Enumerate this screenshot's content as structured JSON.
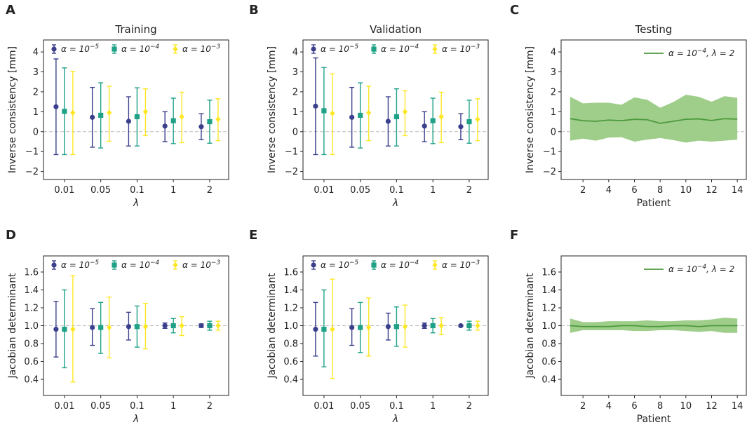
{
  "colors": {
    "alpha5": "#3b3f8c",
    "alpha4": "#1fa187",
    "alpha3": "#fde725",
    "band_line": "#4c9a3c",
    "band_fill": "#9fcd8a",
    "ref": "#bbbbbb"
  },
  "legend_errorbar": [
    {
      "pre": "α = 10",
      "sup": "−5",
      "color": "#3b3f8c",
      "marker": "circle"
    },
    {
      "pre": "α = 10",
      "sup": "−4",
      "color": "#1fa187",
      "marker": "square"
    },
    {
      "pre": "α = 10",
      "sup": "−3",
      "color": "#fde725",
      "marker": "diamond"
    }
  ],
  "legend_band": {
    "pre": "α = 10",
    "sup": "−4",
    "post": ", λ = 2"
  },
  "chart_data": [
    {
      "id": "A",
      "panel_label": "A",
      "type": "errorbar",
      "title": "Training",
      "xlabel": "λ",
      "ylabel": "Inverse consistency [mm]",
      "categories": [
        "0.01",
        "0.05",
        "0.1",
        "1",
        "2"
      ],
      "ylim": [
        -2.4,
        4.6
      ],
      "yticks": [
        -2,
        -1,
        0,
        1,
        2,
        3,
        4
      ],
      "ref": 0,
      "series": [
        {
          "name": "α = 10⁻⁵",
          "mean": [
            1.25,
            0.72,
            0.52,
            0.28,
            0.25
          ],
          "lower": [
            -1.15,
            -0.78,
            -0.72,
            -0.5,
            -0.4
          ],
          "upper": [
            3.65,
            2.22,
            1.75,
            1.0,
            0.9
          ]
        },
        {
          "name": "α = 10⁻⁴",
          "mean": [
            1.02,
            0.82,
            0.75,
            0.55,
            0.5
          ],
          "lower": [
            -1.15,
            -0.82,
            -0.72,
            -0.6,
            -0.58
          ],
          "upper": [
            3.2,
            2.45,
            2.2,
            1.68,
            1.58
          ]
        },
        {
          "name": "α = 10⁻³",
          "mean": [
            0.95,
            0.95,
            1.0,
            0.75,
            0.62
          ],
          "lower": [
            -1.15,
            -0.48,
            -0.2,
            -0.55,
            -0.45
          ],
          "upper": [
            3.02,
            2.28,
            2.15,
            1.98,
            1.65
          ]
        }
      ]
    },
    {
      "id": "B",
      "panel_label": "B",
      "type": "errorbar",
      "title": "Validation",
      "xlabel": "λ",
      "ylabel": "Inverse consistency [mm]",
      "categories": [
        "0.01",
        "0.05",
        "0.1",
        "1",
        "2"
      ],
      "ylim": [
        -2.4,
        4.6
      ],
      "yticks": [
        -2,
        -1,
        0,
        1,
        2,
        3,
        4
      ],
      "ref": 0,
      "series": [
        {
          "name": "α = 10⁻⁵",
          "mean": [
            1.28,
            0.72,
            0.52,
            0.28,
            0.25
          ],
          "lower": [
            -1.15,
            -0.78,
            -0.72,
            -0.5,
            -0.4
          ],
          "upper": [
            3.7,
            2.22,
            1.75,
            1.0,
            0.9
          ]
        },
        {
          "name": "α = 10⁻⁴",
          "mean": [
            1.05,
            0.82,
            0.75,
            0.55,
            0.5
          ],
          "lower": [
            -1.15,
            -0.82,
            -0.72,
            -0.6,
            -0.58
          ],
          "upper": [
            3.22,
            2.45,
            2.15,
            1.68,
            1.58
          ]
        },
        {
          "name": "α = 10⁻³",
          "mean": [
            0.92,
            0.95,
            1.0,
            0.75,
            0.62
          ],
          "lower": [
            -1.15,
            -0.45,
            -0.2,
            -0.55,
            -0.45
          ],
          "upper": [
            2.9,
            2.28,
            2.05,
            1.98,
            1.65
          ]
        }
      ]
    },
    {
      "id": "C",
      "panel_label": "C",
      "type": "area",
      "title": "Testing",
      "xlabel": "Patient",
      "ylabel": "Inverse consistency [mm]",
      "x": [
        1,
        2,
        3,
        4,
        5,
        6,
        7,
        8,
        9,
        10,
        11,
        12,
        13,
        14
      ],
      "xlim": [
        0.3,
        14.7
      ],
      "xticks": [
        2,
        4,
        6,
        8,
        10,
        12,
        14
      ],
      "ylim": [
        -2.4,
        4.6
      ],
      "yticks": [
        -2,
        -1,
        0,
        1,
        2,
        3,
        4
      ],
      "ref": 0,
      "mean": [
        0.65,
        0.55,
        0.52,
        0.58,
        0.55,
        0.62,
        0.6,
        0.42,
        0.52,
        0.62,
        0.64,
        0.56,
        0.65,
        0.63
      ],
      "lower": [
        -0.45,
        -0.35,
        -0.45,
        -0.3,
        -0.28,
        -0.5,
        -0.4,
        -0.32,
        -0.42,
        -0.55,
        -0.45,
        -0.5,
        -0.45,
        -0.4
      ],
      "upper": [
        1.75,
        1.42,
        1.45,
        1.45,
        1.35,
        1.72,
        1.6,
        1.2,
        1.48,
        1.85,
        1.75,
        1.5,
        1.78,
        1.7
      ]
    },
    {
      "id": "D",
      "panel_label": "D",
      "type": "errorbar",
      "title": "",
      "xlabel": "λ",
      "ylabel": "Jacobian determinant",
      "categories": [
        "0.01",
        "0.05",
        "0.1",
        "1",
        "2"
      ],
      "ylim": [
        0.22,
        1.78
      ],
      "yticks": [
        0.4,
        0.6,
        0.8,
        1.0,
        1.2,
        1.4,
        1.6
      ],
      "ref": 1.0,
      "series": [
        {
          "name": "α = 10⁻⁵",
          "mean": [
            0.96,
            0.98,
            0.99,
            1.0,
            1.0
          ],
          "lower": [
            0.65,
            0.78,
            0.84,
            0.97,
            0.98
          ],
          "upper": [
            1.27,
            1.19,
            1.15,
            1.03,
            1.02
          ]
        },
        {
          "name": "α = 10⁻⁴",
          "mean": [
            0.96,
            0.98,
            0.99,
            1.0,
            1.0
          ],
          "lower": [
            0.53,
            0.69,
            0.76,
            0.92,
            0.95
          ],
          "upper": [
            1.4,
            1.26,
            1.22,
            1.08,
            1.05
          ]
        },
        {
          "name": "α = 10⁻³",
          "mean": [
            0.96,
            0.98,
            0.99,
            1.0,
            1.0
          ],
          "lower": [
            0.37,
            0.64,
            0.74,
            0.89,
            0.95
          ],
          "upper": [
            1.56,
            1.32,
            1.25,
            1.1,
            1.05
          ]
        }
      ]
    },
    {
      "id": "E",
      "panel_label": "E",
      "type": "errorbar",
      "title": "",
      "xlabel": "λ",
      "ylabel": "Jacobian determinant",
      "categories": [
        "0.01",
        "0.05",
        "0.1",
        "1",
        "2"
      ],
      "ylim": [
        0.22,
        1.78
      ],
      "yticks": [
        0.4,
        0.6,
        0.8,
        1.0,
        1.2,
        1.4,
        1.6
      ],
      "ref": 1.0,
      "series": [
        {
          "name": "α = 10⁻⁵",
          "mean": [
            0.96,
            0.98,
            0.99,
            1.0,
            1.0
          ],
          "lower": [
            0.66,
            0.78,
            0.84,
            0.97,
            0.99
          ],
          "upper": [
            1.26,
            1.19,
            1.14,
            1.03,
            1.01
          ]
        },
        {
          "name": "α = 10⁻⁴",
          "mean": [
            0.96,
            0.98,
            0.99,
            1.0,
            1.0
          ],
          "lower": [
            0.54,
            0.7,
            0.77,
            0.92,
            0.95
          ],
          "upper": [
            1.4,
            1.26,
            1.21,
            1.08,
            1.05
          ]
        },
        {
          "name": "α = 10⁻³",
          "mean": [
            0.96,
            0.98,
            0.99,
            1.0,
            1.0
          ],
          "lower": [
            0.41,
            0.66,
            0.76,
            0.9,
            0.95
          ],
          "upper": [
            1.52,
            1.31,
            1.23,
            1.09,
            1.05
          ]
        }
      ]
    },
    {
      "id": "F",
      "panel_label": "F",
      "type": "area",
      "title": "",
      "xlabel": "Patient",
      "ylabel": "Jacobian determinant",
      "x": [
        1,
        2,
        3,
        4,
        5,
        6,
        7,
        8,
        9,
        10,
        11,
        12,
        13,
        14
      ],
      "xlim": [
        0.3,
        14.7
      ],
      "xticks": [
        2,
        4,
        6,
        8,
        10,
        12,
        14
      ],
      "ylim": [
        0.22,
        1.78
      ],
      "yticks": [
        0.4,
        0.6,
        0.8,
        1.0,
        1.2,
        1.4,
        1.6
      ],
      "ref": 1.0,
      "mean": [
        1.0,
        0.99,
        0.99,
        0.99,
        1.0,
        1.0,
        0.99,
        0.99,
        1.0,
        1.0,
        0.99,
        1.0,
        1.0,
        1.0
      ],
      "lower": [
        0.92,
        0.95,
        0.95,
        0.95,
        0.95,
        0.94,
        0.94,
        0.95,
        0.95,
        0.94,
        0.93,
        0.94,
        0.92,
        0.92
      ],
      "upper": [
        1.08,
        1.04,
        1.04,
        1.05,
        1.05,
        1.05,
        1.06,
        1.05,
        1.05,
        1.06,
        1.06,
        1.07,
        1.09,
        1.08
      ]
    }
  ]
}
